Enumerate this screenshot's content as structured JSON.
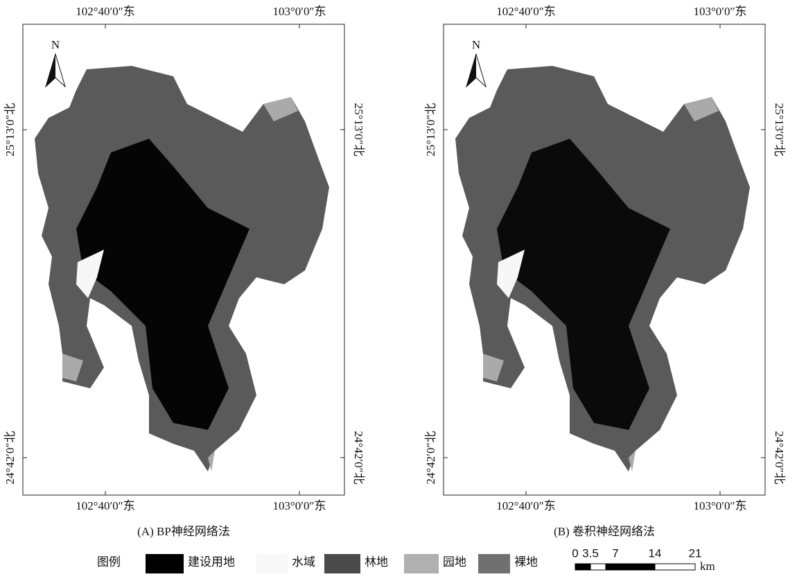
{
  "panels": [
    {
      "caption": "(A) BP神经网络法",
      "top_labels": [
        "102°40′0″东",
        "103°0′0″东"
      ],
      "bottom_labels": [
        "102°40′0″东",
        "103°0′0″东"
      ],
      "left_labels": [
        "25°13′0″北",
        "24°42′0″北"
      ],
      "right_labels": [
        "25°13′0″北",
        "24°42′0″北"
      ],
      "north": "N"
    },
    {
      "caption": "(B) 卷积神经网络法",
      "top_labels": [
        "102°40′0″东",
        "103°0′0″东"
      ],
      "bottom_labels": [
        "102°40′0″东",
        "103°0′0″东"
      ],
      "left_labels": [
        "25°13′0″北",
        "24°42′0″北"
      ],
      "right_labels": [
        "25°13′0″北",
        "24°42′0″北"
      ],
      "north": "N"
    }
  ],
  "legend": {
    "title": "图例",
    "items": [
      "建设用地",
      "水域",
      "林地",
      "园地",
      "裸地"
    ]
  },
  "scale_bar": {
    "labels": [
      "0",
      "3.5",
      "7",
      "14",
      "21"
    ],
    "unit": "km"
  }
}
